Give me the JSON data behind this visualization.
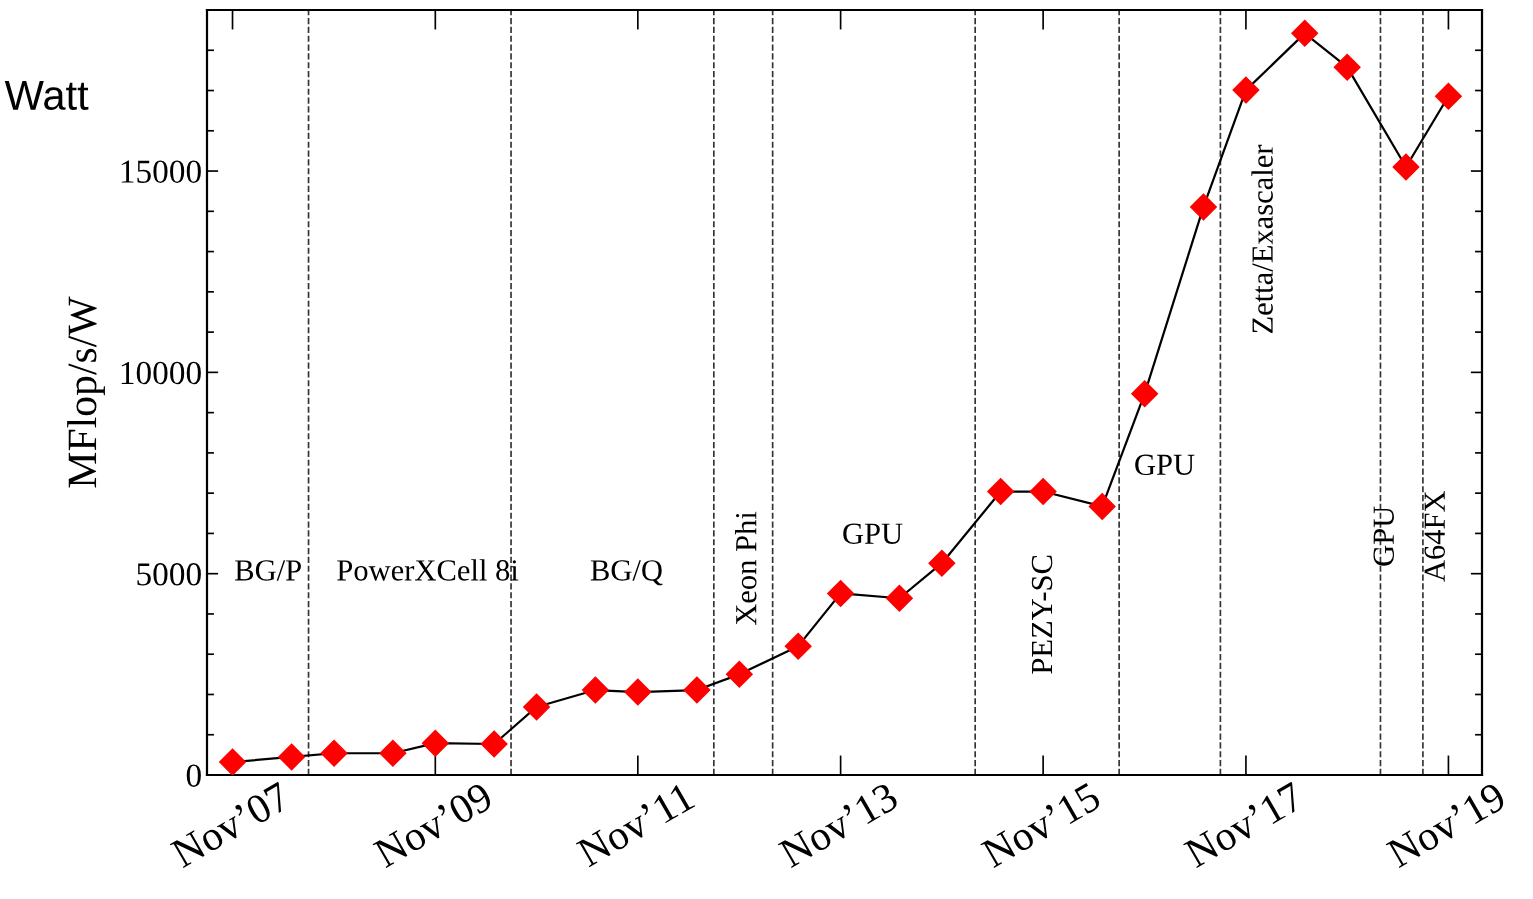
{
  "chart_data": {
    "type": "line",
    "ylabel": "MFlop/s/W",
    "annotations": [
      "Watt",
      "BG/P",
      "PowerXCell 8i",
      "BG/Q",
      "Xeon Phi",
      "GPU",
      "PEZY-SC",
      "GPU",
      "Zetta/Exascaler",
      "GPU",
      "A64FX"
    ],
    "x": [
      "2007-11",
      "2008-06",
      "2008-11",
      "2009-06",
      "2009-11",
      "2010-06",
      "2010-11",
      "2011-06",
      "2011-11",
      "2012-06",
      "2012-11",
      "2013-06",
      "2013-11",
      "2014-06",
      "2014-11",
      "2015-06",
      "2015-11",
      "2016-06",
      "2016-11",
      "2017-06",
      "2017-11",
      "2018-06",
      "2018-11",
      "2019-06",
      "2019-11"
    ],
    "series": [
      {
        "color": "#ff0000",
        "values": [
          320,
          450,
          540,
          540,
          790,
          770,
          1690,
          2110,
          2060,
          2110,
          2500,
          3200,
          4510,
          4390,
          5260,
          7040,
          7040,
          6670,
          9470,
          14110,
          17010,
          18420,
          17580,
          15100,
          16860
        ]
      }
    ],
    "xlim": [
      "2007-08",
      "2020-03"
    ],
    "xticks": [
      {
        "value": "2007-11",
        "label": "Nov’07"
      },
      {
        "value": "2009-11",
        "label": "Nov’09"
      },
      {
        "value": "2011-11",
        "label": "Nov’11"
      },
      {
        "value": "2013-11",
        "label": "Nov’13"
      },
      {
        "value": "2015-11",
        "label": "Nov’15"
      },
      {
        "value": "2017-11",
        "label": "Nov’17"
      },
      {
        "value": "2019-11",
        "label": "Nov’19"
      }
    ],
    "ylim": [
      0,
      19000
    ],
    "yticks": [
      0,
      {
        "value": 1000,
        "label": null
      },
      {
        "value": 2000,
        "label": null
      },
      {
        "value": 3000,
        "label": null
      },
      {
        "value": 4000,
        "label": null
      },
      5000,
      {
        "value": 6000,
        "label": null
      },
      {
        "value": 7000,
        "label": null
      },
      {
        "value": 8000,
        "label": null
      },
      {
        "value": 9000,
        "label": null
      },
      10000,
      {
        "value": 11000,
        "label": null
      },
      {
        "value": 12000,
        "label": null
      },
      {
        "value": 13000,
        "label": null
      },
      {
        "value": 14000,
        "label": null
      },
      15000,
      {
        "value": 16000,
        "label": null
      },
      {
        "value": 17000,
        "label": null
      },
      {
        "value": 18000,
        "label": null
      }
    ],
    "ref_lines": [
      {
        "axis": "x",
        "value": "2008-08",
        "color": "#333333",
        "line_style": "dashed"
      },
      {
        "axis": "x",
        "value": "2010-08",
        "color": "#333333",
        "line_style": "dashed"
      },
      {
        "axis": "x",
        "value": "2012-08",
        "color": "#333333",
        "line_style": "dashed"
      },
      {
        "axis": "x",
        "value": "2013-03",
        "color": "#333333",
        "line_style": "dashed"
      },
      {
        "axis": "x",
        "value": "2015-03",
        "color": "#333333",
        "line_style": "dashed"
      },
      {
        "axis": "x",
        "value": "2016-08",
        "color": "#333333",
        "line_style": "dashed"
      },
      {
        "axis": "x",
        "value": "2017-08",
        "color": "#333333",
        "line_style": "dashed"
      },
      {
        "axis": "x",
        "value": "2019-03",
        "color": "#333333",
        "line_style": "dashed"
      },
      {
        "axis": "x",
        "value": "2019-08",
        "color": "#333333",
        "line_style": "dashed"
      }
    ],
    "marker": "diamond",
    "line_style": "solid",
    "grid": false,
    "legend": false
  }
}
